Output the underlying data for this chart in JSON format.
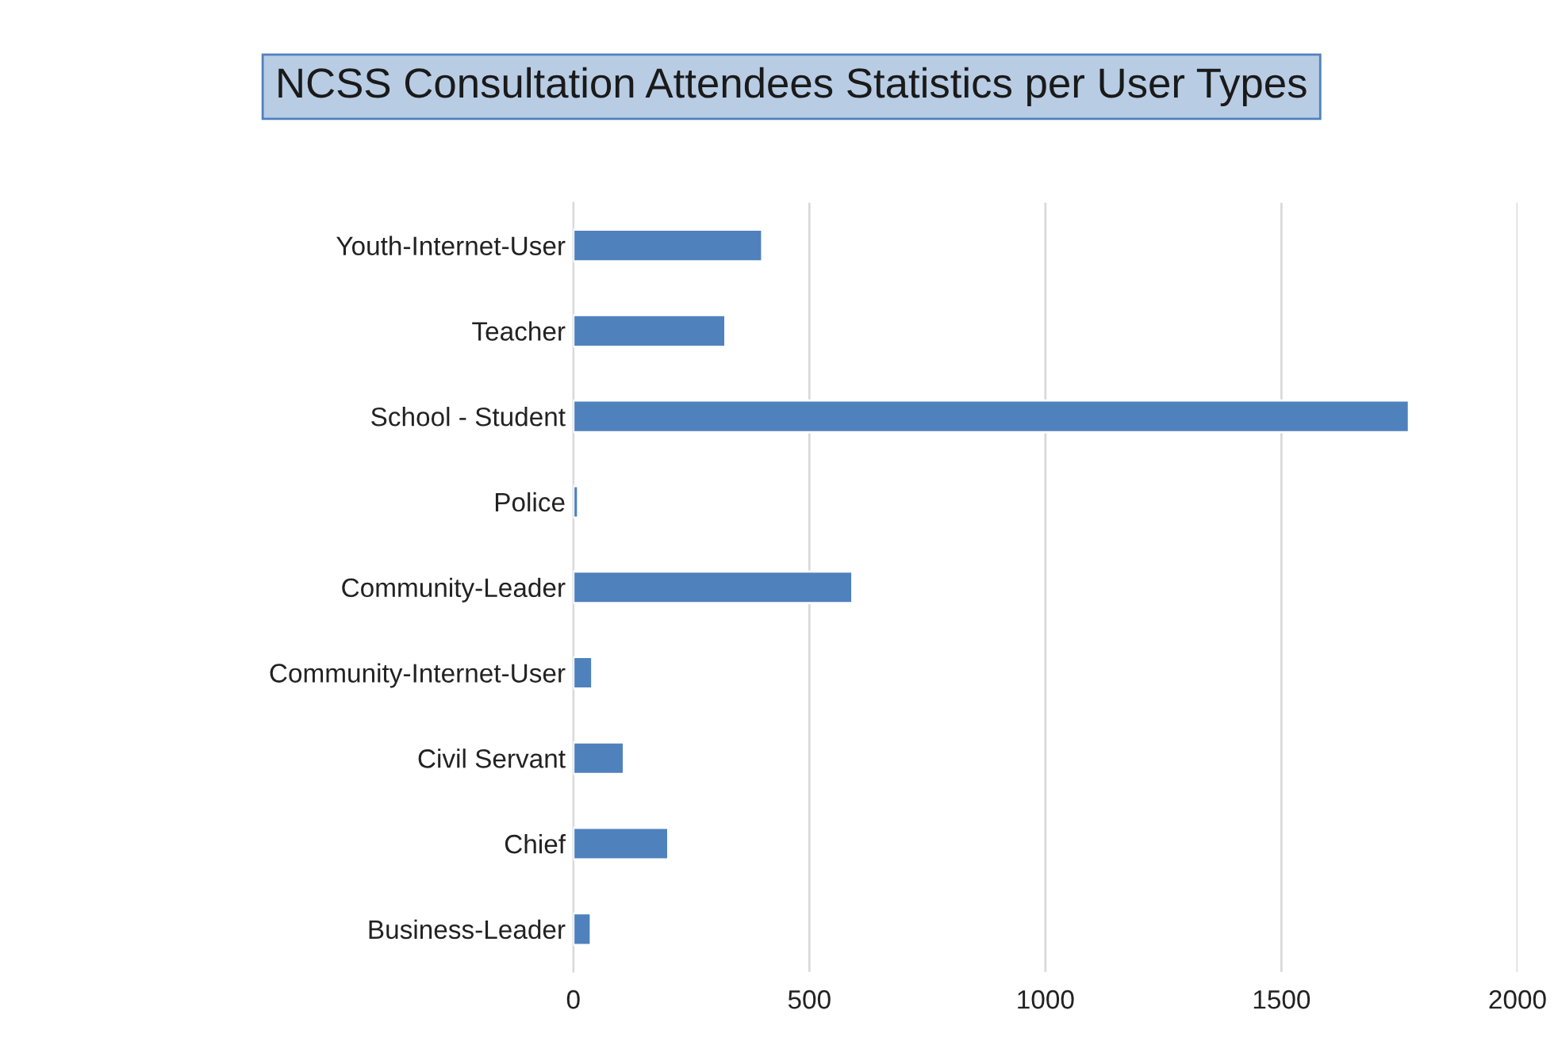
{
  "chart_data": {
    "type": "bar",
    "orientation": "horizontal",
    "title": "NCSS Consultation Attendees Statistics per User Types",
    "categories": [
      "Youth-Internet-User",
      "Teacher",
      "School - Student",
      "Police",
      "Community-Leader",
      "Community-Internet-User",
      "Civil Servant",
      "Chief",
      "Business-Leader"
    ],
    "values": [
      400,
      322,
      1770,
      10,
      591,
      40,
      107,
      201,
      37
    ],
    "color": "#4f81bd",
    "xlim": [
      0,
      2000
    ],
    "xticks": [
      0,
      500,
      1000,
      1500,
      2000
    ],
    "grid": "x",
    "legend": false
  }
}
